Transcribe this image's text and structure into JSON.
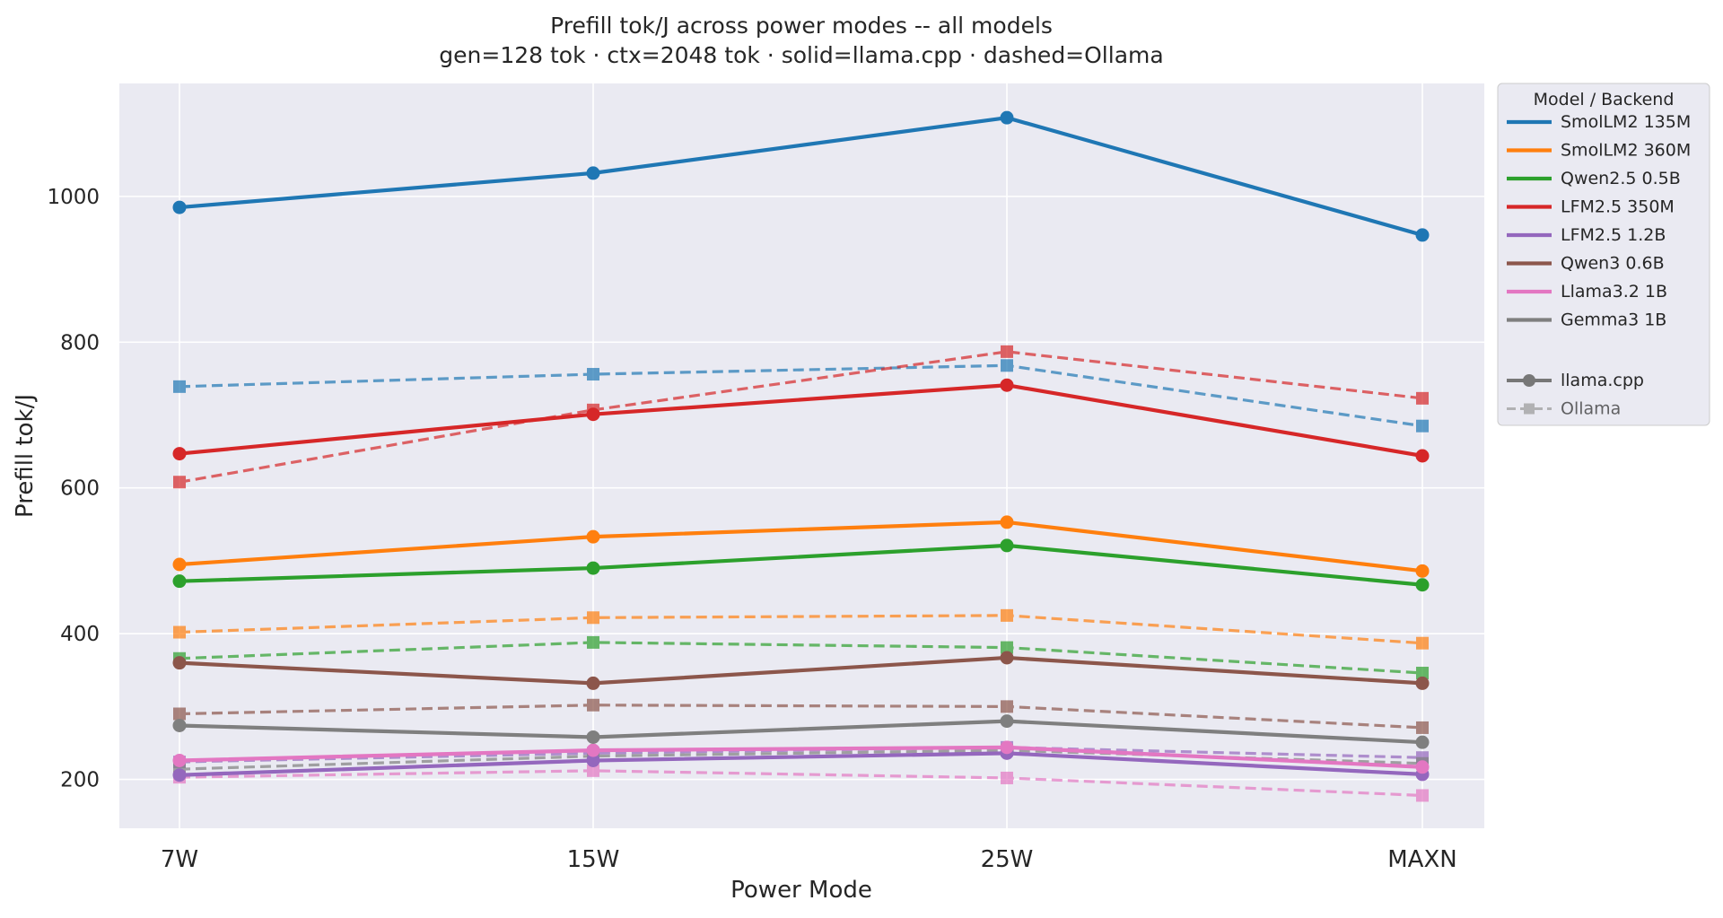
{
  "chart_data": {
    "type": "line",
    "title": "Prefill tok/J across power modes -- all models",
    "subtitle": "gen=128 tok · ctx=2048 tok · solid=llama.cpp · dashed=Ollama",
    "xlabel": "Power Mode",
    "ylabel": "Prefill tok/J",
    "categories": [
      "7W",
      "15W",
      "25W",
      "MAXN"
    ],
    "ylim": [
      133,
      1155
    ],
    "yticks": [
      200,
      400,
      600,
      800,
      1000
    ],
    "grid": true,
    "legend_placement": "outside-right",
    "legend_title": "Model  /  Backend",
    "backend_legend": [
      {
        "name": "llama.cpp",
        "marker": "circle",
        "dash": "solid"
      },
      {
        "name": "Ollama",
        "marker": "square",
        "dash": "dashed"
      }
    ],
    "models": [
      {
        "name": "SmolLM2 135M",
        "color": "#1f77b4",
        "llama": [
          985,
          1032,
          1108,
          947
        ],
        "ollama": [
          739,
          756,
          768,
          685
        ]
      },
      {
        "name": "SmolLM2 360M",
        "color": "#ff7f0e",
        "llama": [
          495,
          533,
          553,
          486
        ],
        "ollama": [
          402,
          422,
          425,
          387
        ]
      },
      {
        "name": "Qwen2.5 0.5B",
        "color": "#2ca02c",
        "llama": [
          472,
          490,
          521,
          467
        ],
        "ollama": [
          366,
          388,
          381,
          346
        ]
      },
      {
        "name": "LFM2.5 350M",
        "color": "#d62728",
        "llama": [
          647,
          701,
          741,
          644
        ],
        "ollama": [
          608,
          707,
          787,
          723
        ]
      },
      {
        "name": "LFM2.5 1.2B",
        "color": "#9467bd",
        "llama": [
          206,
          226,
          236,
          207
        ],
        "ollama": [
          224,
          236,
          244,
          230
        ]
      },
      {
        "name": "Qwen3 0.6B",
        "color": "#8c564b",
        "llama": [
          360,
          332,
          367,
          332
        ],
        "ollama": [
          290,
          302,
          300,
          271
        ]
      },
      {
        "name": "Llama3.2 1B",
        "color": "#e377c2",
        "llama": [
          226,
          240,
          244,
          217
        ],
        "ollama": [
          203,
          212,
          202,
          178
        ]
      },
      {
        "name": "Gemma3 1B",
        "color": "#7f7f7f",
        "llama": [
          274,
          258,
          280,
          251
        ],
        "ollama": [
          214,
          232,
          240,
          222
        ]
      }
    ]
  }
}
